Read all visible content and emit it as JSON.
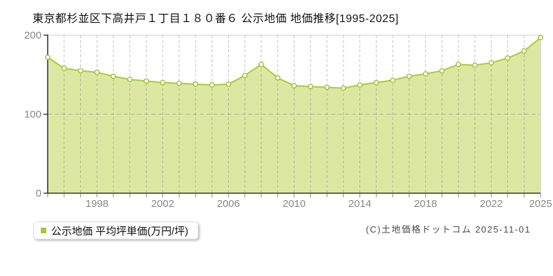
{
  "title": "東京都杉並区下高井戸１丁目１８０番６ 公示地価 地価推移[1995-2025]",
  "legend": {
    "label": "公示地価 平均坪単価(万円/坪)",
    "marker_color": "#a6c72e"
  },
  "footer": {
    "copyright": "(C)土地価格ドットコム 2025-11-01"
  },
  "chart_data": {
    "type": "area",
    "title": "東京都杉並区下高井戸１丁目１８０番６ 公示地価 地価推移[1995-2025]",
    "x": [
      1995,
      1996,
      1997,
      1998,
      1999,
      2000,
      2001,
      2002,
      2003,
      2004,
      2005,
      2006,
      2007,
      2008,
      2009,
      2010,
      2011,
      2012,
      2013,
      2014,
      2015,
      2016,
      2017,
      2018,
      2019,
      2020,
      2021,
      2022,
      2023,
      2024,
      2025
    ],
    "series": [
      {
        "name": "公示地価 平均坪単価(万円/坪)",
        "values": [
          172,
          158,
          155,
          153,
          148,
          144,
          142,
          140,
          139,
          138,
          137,
          138,
          149,
          163,
          146,
          136,
          135,
          134,
          133,
          137,
          140,
          143,
          148,
          151,
          155,
          163,
          162,
          165,
          171,
          180,
          197
        ]
      }
    ],
    "xlabel": "",
    "ylabel": "",
    "ylim": [
      0,
      200
    ],
    "yticks": [
      0,
      100,
      200
    ],
    "xtick_labels": [
      1998,
      2002,
      2006,
      2010,
      2014,
      2018,
      2022,
      2025
    ],
    "grid": true,
    "legend_position": "bottom-left",
    "colors": {
      "line": "#afcc45",
      "fill": "#dce8a2",
      "marker_fill": "#ffffff",
      "marker_stroke": "#a2c43a",
      "grid": "rgba(120,120,120,0.45)",
      "border": "#cccccc",
      "axis": "#333333",
      "tick": "#999999",
      "tick_label": "#888888"
    }
  }
}
